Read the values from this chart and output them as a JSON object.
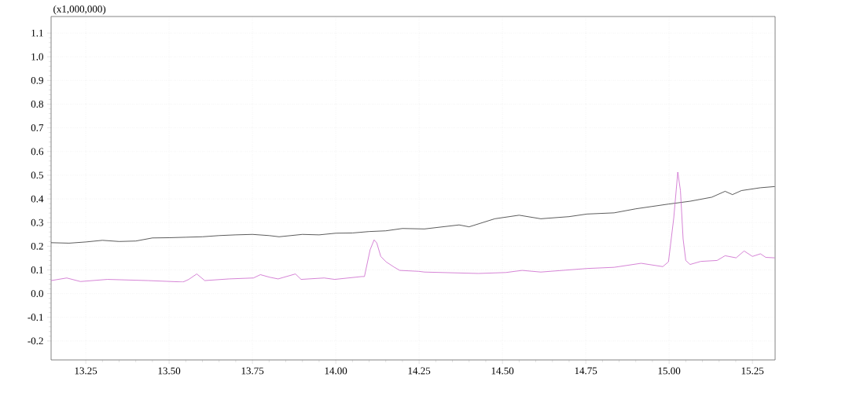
{
  "chart_data": {
    "type": "line",
    "ylabel": "(x1,000,000)",
    "xlim": [
      13.146,
      15.318
    ],
    "ylim": [
      -0.28,
      1.17
    ],
    "xticks": [
      {
        "value": 13.25,
        "label": "13.25"
      },
      {
        "value": 13.5,
        "label": "13.50"
      },
      {
        "value": 13.75,
        "label": "13.75"
      },
      {
        "value": 14.0,
        "label": "14.00"
      },
      {
        "value": 14.25,
        "label": "14.25"
      },
      {
        "value": 14.5,
        "label": "14.50"
      },
      {
        "value": 14.75,
        "label": "14.75"
      },
      {
        "value": 15.0,
        "label": "15.00"
      },
      {
        "value": 15.25,
        "label": "15.25"
      }
    ],
    "yticks": [
      {
        "value": -0.2,
        "label": "-0.2"
      },
      {
        "value": -0.1,
        "label": "-0.1"
      },
      {
        "value": 0,
        "label": "0.0"
      },
      {
        "value": 0.1,
        "label": "0.1"
      },
      {
        "value": 0.2,
        "label": "0.2"
      },
      {
        "value": 0.3,
        "label": "0.3"
      },
      {
        "value": 0.4,
        "label": "0.4"
      },
      {
        "value": 0.5,
        "label": "0.5"
      },
      {
        "value": 0.6,
        "label": "0.6"
      },
      {
        "value": 0.7,
        "label": "0.7"
      },
      {
        "value": 0.8,
        "label": "0.8"
      },
      {
        "value": 0.9,
        "label": "0.9"
      },
      {
        "value": 1.0,
        "label": "1.0"
      },
      {
        "value": 1.1,
        "label": "1.1"
      }
    ],
    "grid": true,
    "line_style": "solid",
    "marker": "none",
    "series": [
      {
        "color": "#333333",
        "x": [
          13.146,
          13.2,
          13.25,
          13.3,
          13.35,
          13.4,
          13.45,
          13.5,
          13.55,
          13.6,
          13.65,
          13.7,
          13.75,
          13.8,
          13.83,
          13.9,
          13.95,
          14.0,
          14.05,
          14.1,
          14.15,
          14.2,
          14.266,
          14.37,
          14.4,
          14.477,
          14.55,
          14.615,
          14.7,
          14.754,
          14.835,
          14.9,
          14.998,
          15.063,
          15.128,
          15.168,
          15.19,
          15.217,
          15.274,
          15.317
        ],
        "values": [
          0.215,
          0.213,
          0.218,
          0.225,
          0.22,
          0.222,
          0.235,
          0.236,
          0.238,
          0.24,
          0.245,
          0.248,
          0.25,
          0.245,
          0.24,
          0.25,
          0.248,
          0.255,
          0.256,
          0.262,
          0.265,
          0.275,
          0.273,
          0.29,
          0.282,
          0.316,
          0.331,
          0.316,
          0.325,
          0.336,
          0.341,
          0.358,
          0.378,
          0.39,
          0.407,
          0.432,
          0.418,
          0.435,
          0.447,
          0.452
        ]
      },
      {
        "color": "#cc66cc",
        "x": [
          13.146,
          13.193,
          13.234,
          13.315,
          13.437,
          13.542,
          13.559,
          13.583,
          13.607,
          13.68,
          13.753,
          13.774,
          13.802,
          13.827,
          13.879,
          13.896,
          13.965,
          13.997,
          14.078,
          14.086,
          14.103,
          14.115,
          14.123,
          14.135,
          14.151,
          14.176,
          14.192,
          14.249,
          14.266,
          14.428,
          14.51,
          14.559,
          14.615,
          14.754,
          14.835,
          14.916,
          14.981,
          14.998,
          15.014,
          15.026,
          15.034,
          15.042,
          15.05,
          15.063,
          15.095,
          15.144,
          15.168,
          15.201,
          15.225,
          15.25,
          15.274,
          15.29,
          15.317
        ],
        "values": [
          0.055,
          0.066,
          0.051,
          0.06,
          0.055,
          0.049,
          0.06,
          0.083,
          0.055,
          0.062,
          0.066,
          0.08,
          0.069,
          0.062,
          0.083,
          0.06,
          0.066,
          0.06,
          0.072,
          0.072,
          0.185,
          0.227,
          0.214,
          0.157,
          0.134,
          0.111,
          0.098,
          0.094,
          0.091,
          0.085,
          0.089,
          0.098,
          0.091,
          0.106,
          0.111,
          0.128,
          0.114,
          0.134,
          0.32,
          0.513,
          0.435,
          0.231,
          0.14,
          0.123,
          0.136,
          0.14,
          0.16,
          0.151,
          0.18,
          0.157,
          0.168,
          0.153,
          0.151
        ]
      }
    ]
  }
}
